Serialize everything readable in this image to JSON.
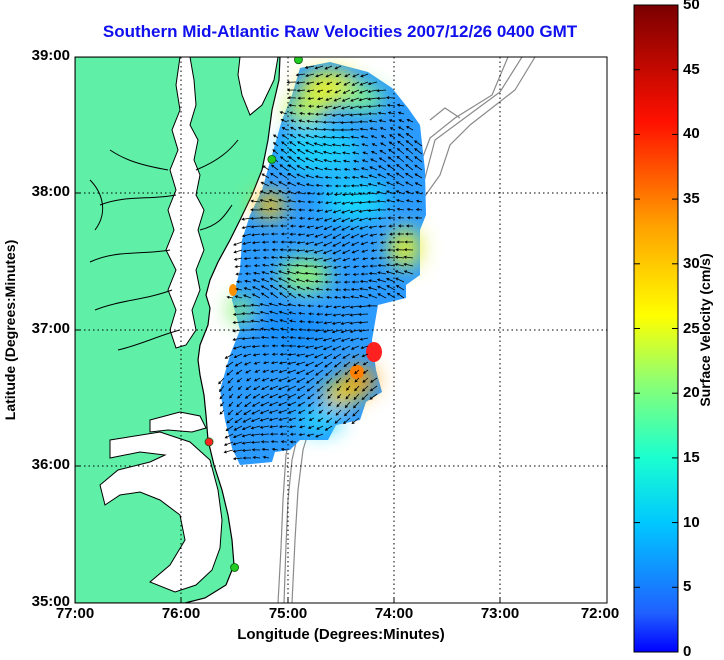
{
  "title": "Southern Mid-Atlantic Raw Velocities 2007/12/26 0400 GMT",
  "xlabel": "Longitude (Degrees:Minutes)",
  "ylabel": "Latitude (Degrees:Minutes)",
  "colorbar": {
    "label": "Surface Velocity (cm/s)",
    "ticks": [
      "0",
      "5",
      "10",
      "15",
      "20",
      "25",
      "30",
      "35",
      "40",
      "45",
      "50"
    ],
    "range": [
      0,
      50
    ],
    "colormap": "jet"
  },
  "axes": {
    "lon_ticks": [
      "77:00",
      "76:00",
      "75:00",
      "74:00",
      "73:00",
      "72:00"
    ],
    "lat_ticks": [
      "39:00",
      "38:00",
      "37:00",
      "36:00",
      "35:00"
    ],
    "lon_range": [
      -77,
      -72
    ],
    "lat_range": [
      35,
      39
    ],
    "grid": "dotted"
  },
  "colors": {
    "land": "#5fefa6",
    "water": "#ffffff",
    "coastline": "#000000",
    "bathymetry": "#8a8a8a",
    "title": "#1010ee",
    "station_active": "#22cc22",
    "station_alert": "#ff2222"
  },
  "stations": [
    {
      "lon": -74.9,
      "lat": 38.98,
      "status": "active"
    },
    {
      "lon": -75.15,
      "lat": 38.25,
      "status": "active"
    },
    {
      "lon": -75.74,
      "lat": 36.18,
      "status": "alert"
    },
    {
      "lon": -75.5,
      "lat": 35.26,
      "status": "active"
    }
  ]
}
